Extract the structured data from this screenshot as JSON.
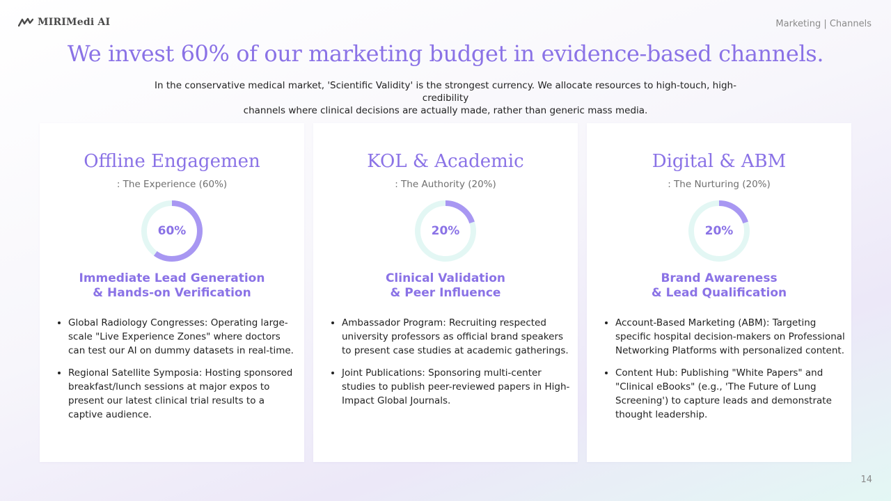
{
  "header": {
    "logo_text": "MIRIMedi AI",
    "section": "Marketing | Channels"
  },
  "headline": "We invest 60% of our marketing budget in evidence-based channels.",
  "subtitle_line1": "In the conservative medical market, 'Scientific Validity' is the strongest currency. We allocate resources to high-touch, high-credibility",
  "subtitle_line2": "channels where clinical decisions are actually made, rather than generic mass media.",
  "colors": {
    "accent": "#8a72e6",
    "ring_fill": "#a897f2",
    "ring_track": "#e3f7f4"
  },
  "cards": [
    {
      "title": "Offline Engagemen",
      "subtitle": ": The Experience (60%)",
      "percent_label": "60%",
      "share": 0.6,
      "focus_line1": "Immediate Lead Generation",
      "focus_line2": "& Hands-on Verification",
      "bullets": [
        "Global Radiology Congresses: Operating large-scale \"Live Experience Zones\" where doctors can test our AI on dummy datasets in real-time.",
        "Regional Satellite Symposia: Hosting sponsored breakfast/lunch sessions at major expos to present our latest clinical trial results to a captive audience."
      ]
    },
    {
      "title": "KOL & Academic",
      "subtitle": ": The Authority (20%)",
      "percent_label": "20%",
      "share": 0.2,
      "focus_line1": "Clinical Validation",
      "focus_line2": "& Peer Influence",
      "bullets": [
        "Ambassador Program: Recruiting respected university professors as official brand speakers to present case studies at academic gatherings.",
        "Joint Publications: Sponsoring multi-center studies to publish peer-reviewed papers in High-Impact Global Journals."
      ]
    },
    {
      "title": "Digital & ABM",
      "subtitle": ": The Nurturing (20%)",
      "percent_label": "20%",
      "share": 0.2,
      "focus_line1": "Brand Awareness",
      "focus_line2": "& Lead Qualification",
      "bullets": [
        "Account-Based Marketing (ABM): Targeting specific hospital decision-makers on Professional Networking Platforms with personalized content.",
        "Content Hub: Publishing \"White Papers\" and \"Clinical eBooks\" (e.g., 'The Future of Lung Screening') to capture leads and demonstrate thought leadership."
      ]
    }
  ],
  "page_number": "14"
}
